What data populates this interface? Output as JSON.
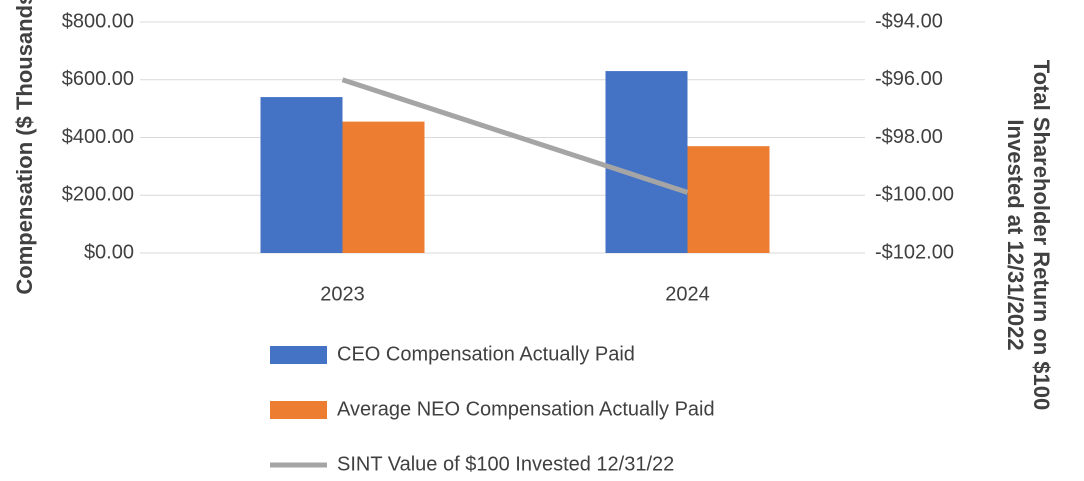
{
  "chart_data": {
    "type": "bar",
    "categories": [
      "2023",
      "2024"
    ],
    "series": [
      {
        "name": "CEO Compensation Actually Paid",
        "color": "#4472c4",
        "values": [
          540,
          630
        ]
      },
      {
        "name": "Average NEO Compensation Actually Paid",
        "color": "#ed7d31",
        "values": [
          455,
          370
        ]
      },
      {
        "name": "SINT Value of $100 Invested 12/31/22",
        "color": "#a5a5a5",
        "values": [
          -96.0,
          -99.9
        ],
        "axis": "y2",
        "type": "line"
      }
    ],
    "ylabel": "Compensation ($ Thousands)",
    "y2label": [
      "Total Shareholder Return on $100",
      "Invested at 12/31/2022"
    ],
    "ylim": [
      0,
      800
    ],
    "yticks": [
      {
        "value": 0,
        "label": "$0.00"
      },
      {
        "value": 200,
        "label": "$200.00"
      },
      {
        "value": 400,
        "label": "$400.00"
      },
      {
        "value": 600,
        "label": "$600.00"
      },
      {
        "value": 800,
        "label": "$800.00"
      }
    ],
    "y2lim": [
      -102,
      -94
    ],
    "y2ticks": [
      {
        "value": -102,
        "label": "-$102.00"
      },
      {
        "value": -100,
        "label": "-$100.00"
      },
      {
        "value": -98,
        "label": "-$98.00"
      },
      {
        "value": -96,
        "label": "-$96.00"
      },
      {
        "value": -94,
        "label": "-$94.00"
      }
    ],
    "grid": true,
    "legend": "bottom"
  }
}
